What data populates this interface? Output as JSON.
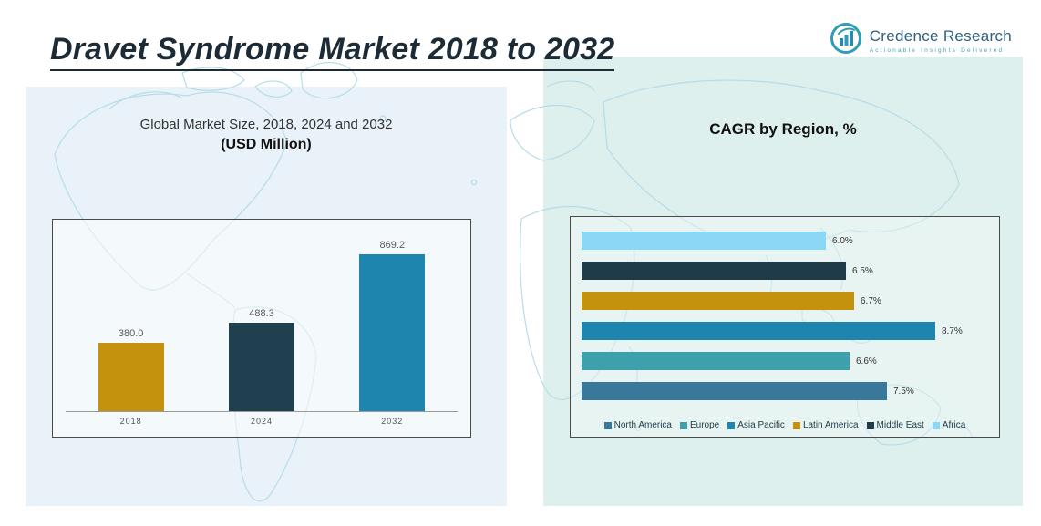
{
  "header": {
    "title": "Dravet Syndrome Market 2018 to 2032",
    "logo": {
      "name": "Credence Research",
      "tagline": "Actionable Insights Delivered",
      "brand_color": "#2e9db5",
      "name_color": "#2f5f7f"
    }
  },
  "chart_data": [
    {
      "type": "bar",
      "title": "Global Market Size, 2018, 2024 and 2032",
      "subtitle": "(USD Million)",
      "categories": [
        "2018",
        "2024",
        "2032"
      ],
      "values": [
        380.0,
        488.3,
        869.2
      ],
      "value_labels": [
        "380.0",
        "488.3",
        "869.2"
      ],
      "colors": [
        "#c5920d",
        "#21404f",
        "#1e86ae"
      ],
      "xlabel": "",
      "ylabel": "USD Million",
      "ylim": [
        0,
        1000
      ],
      "grid": false,
      "legend_position": "none"
    },
    {
      "type": "bar-horizontal",
      "title": "CAGR by Region, %",
      "categories": [
        "Africa",
        "Middle East",
        "Latin America",
        "Asia Pacific",
        "Europe",
        "North America"
      ],
      "values": [
        6.0,
        6.5,
        6.7,
        8.7,
        6.6,
        7.5
      ],
      "value_labels": [
        "6.0%",
        "6.5%",
        "6.7%",
        "8.7%",
        "6.6%",
        "7.5%"
      ],
      "colors": [
        "#8bd7f6",
        "#1f3b4a",
        "#c5920d",
        "#1e86ae",
        "#3e9fad",
        "#38789b"
      ],
      "xlabel": "",
      "ylabel": "",
      "xlim": [
        0,
        10
      ],
      "grid": false,
      "legend_position": "bottom",
      "legend": [
        {
          "label": "North America",
          "color": "#38789b"
        },
        {
          "label": "Europe",
          "color": "#3e9fad"
        },
        {
          "label": "Asia Pacific",
          "color": "#1e86ae"
        },
        {
          "label": "Latin America",
          "color": "#c5920d"
        },
        {
          "label": "Middle East",
          "color": "#1f3b4a"
        },
        {
          "label": "Africa",
          "color": "#8bd7f6"
        }
      ]
    }
  ]
}
